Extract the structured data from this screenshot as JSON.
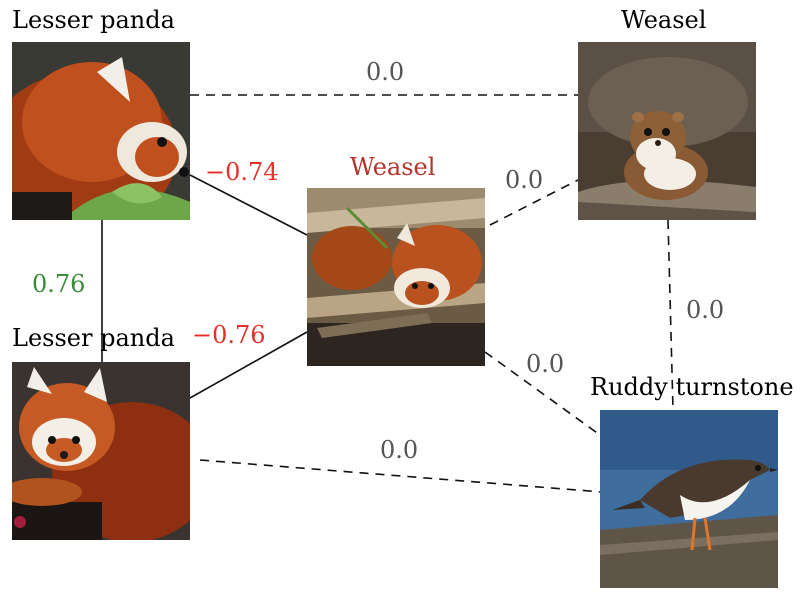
{
  "nodes": {
    "panda_top": {
      "title": "Lesser panda",
      "icon": "red-panda-photo"
    },
    "weasel_top": {
      "title": "Weasel",
      "icon": "weasel-photo"
    },
    "center": {
      "title": "Weasel",
      "title_color": "#b5332a",
      "icon": "red-panda-photo"
    },
    "panda_bottom": {
      "title": "Lesser panda",
      "icon": "red-panda-photo"
    },
    "turnstone": {
      "title": "Ruddy turnstone",
      "icon": "ruddy-turnstone-bird-photo"
    }
  },
  "edges": {
    "top_row": {
      "value": "0.0",
      "style": "dashed"
    },
    "weasel_center": {
      "value": "0.0",
      "style": "dashed"
    },
    "weasel_turnstone": {
      "value": "0.0",
      "style": "dashed"
    },
    "center_turnstone": {
      "value": "0.0",
      "style": "dashed"
    },
    "bottom_row": {
      "value": "0.0",
      "style": "dashed"
    },
    "panda_top_center": {
      "value": "−0.74",
      "style": "solid"
    },
    "panda_bottom_center": {
      "value": "−0.76",
      "style": "solid"
    },
    "panda_pair": {
      "value": "0.76",
      "style": "solid"
    }
  },
  "colors": {
    "negative": "#e8302a",
    "positive": "#3d8a3a",
    "neutral": "#555555"
  }
}
